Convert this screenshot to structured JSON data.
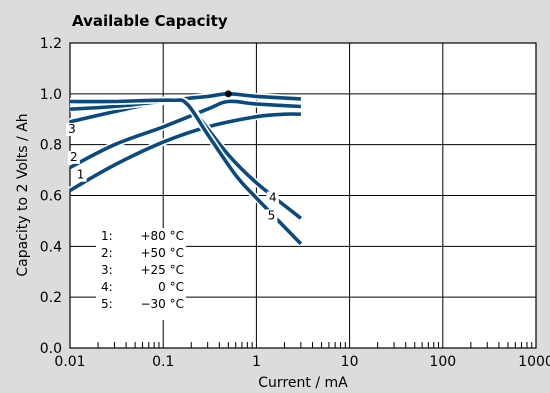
{
  "chart_data": {
    "type": "line",
    "title": "Available Capacity",
    "xlabel": "Current / mA",
    "ylabel": "Capacity to 2 Volts / Ah",
    "x_scale": "log",
    "xlim": [
      0.01,
      1000
    ],
    "ylim": [
      0.0,
      1.2
    ],
    "x_ticks": [
      0.01,
      0.1,
      1,
      10,
      100,
      1000
    ],
    "x_tick_labels": [
      "0.01",
      "0.1",
      "1",
      "10",
      "100",
      "1000"
    ],
    "y_ticks": [
      0.0,
      0.2,
      0.4,
      0.6,
      0.8,
      1.0,
      1.2
    ],
    "y_tick_labels": [
      "0.0",
      "0.2",
      "0.4",
      "0.6",
      "0.8",
      "1.0",
      "1.2"
    ],
    "grid": true,
    "line_color": "#0b4a7f",
    "background": "#ffffff",
    "page_background": "#dcdcdc",
    "series": [
      {
        "name": "1",
        "label_at": [
          0.013,
          0.67
        ],
        "points": [
          [
            0.01,
            0.62
          ],
          [
            0.03,
            0.72
          ],
          [
            0.1,
            0.81
          ],
          [
            0.3,
            0.87
          ],
          [
            1,
            0.91
          ],
          [
            2,
            0.92
          ],
          [
            3,
            0.92
          ]
        ]
      },
      {
        "name": "2",
        "label_at": [
          0.011,
          0.74
        ],
        "points": [
          [
            0.01,
            0.71
          ],
          [
            0.03,
            0.8
          ],
          [
            0.1,
            0.87
          ],
          [
            0.3,
            0.94
          ],
          [
            0.5,
            0.97
          ],
          [
            1,
            0.96
          ],
          [
            3,
            0.95
          ]
        ]
      },
      {
        "name": "3",
        "label_at": [
          0.0105,
          0.85
        ],
        "points": [
          [
            0.01,
            0.89
          ],
          [
            0.03,
            0.93
          ],
          [
            0.1,
            0.97
          ],
          [
            0.3,
            0.99
          ],
          [
            0.5,
            1.0
          ],
          [
            1,
            0.99
          ],
          [
            3,
            0.98
          ]
        ]
      },
      {
        "name": "4",
        "label_at": [
          1.5,
          0.58
        ],
        "points": [
          [
            0.01,
            0.94
          ],
          [
            0.03,
            0.95
          ],
          [
            0.1,
            0.97
          ],
          [
            0.17,
            0.97
          ],
          [
            0.25,
            0.9
          ],
          [
            0.5,
            0.76
          ],
          [
            1,
            0.65
          ],
          [
            3,
            0.51
          ]
        ]
      },
      {
        "name": "5",
        "label_at": [
          1.45,
          0.51
        ],
        "points": [
          [
            0.01,
            0.97
          ],
          [
            0.03,
            0.97
          ],
          [
            0.12,
            0.975
          ],
          [
            0.18,
            0.96
          ],
          [
            0.3,
            0.84
          ],
          [
            0.6,
            0.68
          ],
          [
            1,
            0.59
          ],
          [
            3,
            0.41
          ]
        ]
      }
    ],
    "marker": {
      "x": 0.5,
      "y": 1.0
    },
    "legend": [
      {
        "id": "1:",
        "temp": "+80 °C"
      },
      {
        "id": "2:",
        "temp": "+50 °C"
      },
      {
        "id": "3:",
        "temp": "+25 °C"
      },
      {
        "id": "4:",
        "temp": "0 °C"
      },
      {
        "id": "5:",
        "temp": "−30 °C"
      }
    ]
  }
}
